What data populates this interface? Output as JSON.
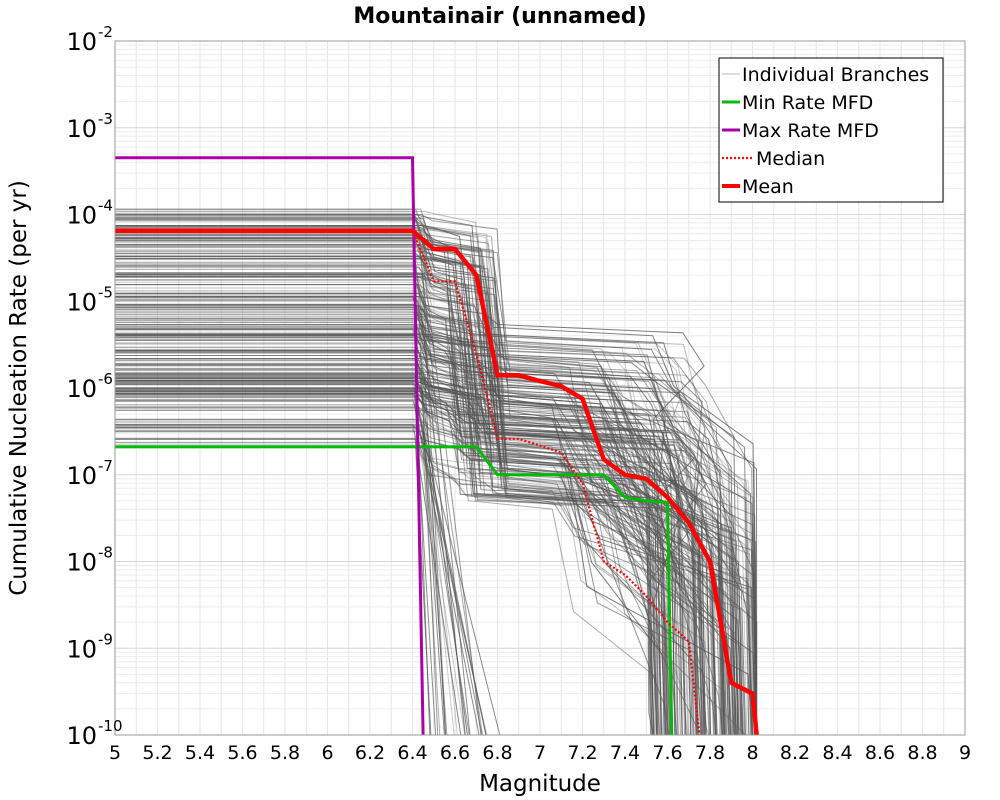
{
  "chart_data": {
    "type": "line",
    "title": "Mountainair (unnamed)",
    "xlabel": "Magnitude",
    "ylabel": "Cumulative Nucleation Rate (per yr)",
    "xlim": [
      5,
      9
    ],
    "ylim": [
      1e-10,
      0.01
    ],
    "yscale": "log",
    "grid": true,
    "legend_position": "top-right",
    "x_ticks": [
      "5",
      "5.2",
      "5.4",
      "5.6",
      "5.8",
      "6",
      "6.2",
      "6.4",
      "6.6",
      "6.8",
      "7",
      "7.2",
      "7.4",
      "7.6",
      "7.8",
      "8",
      "8.2",
      "8.4",
      "8.6",
      "8.8",
      "9"
    ],
    "y_ticks": [
      {
        "value": 0.01,
        "base": "10",
        "exp": "-2"
      },
      {
        "value": 0.001,
        "base": "10",
        "exp": "-3"
      },
      {
        "value": 0.0001,
        "base": "10",
        "exp": "-4"
      },
      {
        "value": 1e-05,
        "base": "10",
        "exp": "-5"
      },
      {
        "value": 1e-06,
        "base": "10",
        "exp": "-6"
      },
      {
        "value": 1e-07,
        "base": "10",
        "exp": "-7"
      },
      {
        "value": 1e-08,
        "base": "10",
        "exp": "-8"
      },
      {
        "value": 1e-09,
        "base": "10",
        "exp": "-9"
      },
      {
        "value": 1e-10,
        "base": "10",
        "exp": "-10"
      }
    ],
    "series": [
      {
        "name": "Individual Branches",
        "color": "#555555",
        "style": "thin",
        "values": [
          [
            5,
            0.0001
          ],
          [
            6.4,
            0.0001
          ],
          [
            6.7,
            3e-06
          ],
          [
            7.9,
            1e-08
          ],
          [
            8,
            1e-10
          ]
        ]
      },
      {
        "name": "Min Rate MFD",
        "color": "#00bb00",
        "style": "solid",
        "values": [
          [
            5,
            2.1e-07
          ],
          [
            6.7,
            2.1e-07
          ],
          [
            6.8,
            1e-07
          ],
          [
            7.3,
            1e-07
          ],
          [
            7.4,
            5.5e-08
          ],
          [
            7.5,
            5e-08
          ],
          [
            7.6,
            4.8e-08
          ],
          [
            7.62,
            1e-10
          ]
        ]
      },
      {
        "name": "Max Rate MFD",
        "color": "#aa00aa",
        "style": "solid",
        "values": [
          [
            5,
            0.00045
          ],
          [
            6.4,
            0.00045
          ],
          [
            6.45,
            1e-10
          ]
        ]
      },
      {
        "name": "Median",
        "color": "#ff0000",
        "style": "dotted",
        "values": [
          [
            5,
            6.5e-05
          ],
          [
            6.4,
            6.5e-05
          ],
          [
            6.5,
            1.7e-05
          ],
          [
            6.6,
            1.7e-05
          ],
          [
            6.7,
            2.5e-06
          ],
          [
            6.8,
            2.6e-07
          ],
          [
            6.9,
            2.6e-07
          ],
          [
            7.1,
            1.8e-07
          ],
          [
            7.2,
            8e-08
          ],
          [
            7.3,
            1e-08
          ],
          [
            7.4,
            7e-09
          ],
          [
            7.5,
            4e-09
          ],
          [
            7.6,
            2e-09
          ],
          [
            7.7,
            1.2e-09
          ],
          [
            7.75,
            1e-10
          ]
        ]
      },
      {
        "name": "Mean",
        "color": "#ff0000",
        "style": "thick",
        "values": [
          [
            5,
            6.5e-05
          ],
          [
            6.4,
            6.5e-05
          ],
          [
            6.5,
            4e-05
          ],
          [
            6.6,
            4e-05
          ],
          [
            6.7,
            2e-05
          ],
          [
            6.8,
            1.4e-06
          ],
          [
            6.9,
            1.4e-06
          ],
          [
            7,
            1.2e-06
          ],
          [
            7.1,
            1.05e-06
          ],
          [
            7.2,
            7.5e-07
          ],
          [
            7.3,
            1.5e-07
          ],
          [
            7.4,
            1e-07
          ],
          [
            7.5,
            9e-08
          ],
          [
            7.6,
            5.5e-08
          ],
          [
            7.7,
            2.8e-08
          ],
          [
            7.8,
            1e-08
          ],
          [
            7.9,
            4e-10
          ],
          [
            8,
            3e-10
          ],
          [
            8.02,
            1e-10
          ]
        ]
      }
    ]
  },
  "legend": {
    "items": [
      {
        "label": "Individual Branches",
        "color": "#bbbbbb",
        "style": "thin"
      },
      {
        "label": "Min Rate MFD",
        "color": "#00bb00",
        "style": "solid"
      },
      {
        "label": "Max Rate MFD",
        "color": "#aa00aa",
        "style": "solid"
      },
      {
        "label": "Median",
        "color": "#ff0000",
        "style": "dotted"
      },
      {
        "label": "Mean",
        "color": "#ff0000",
        "style": "thick"
      }
    ]
  }
}
